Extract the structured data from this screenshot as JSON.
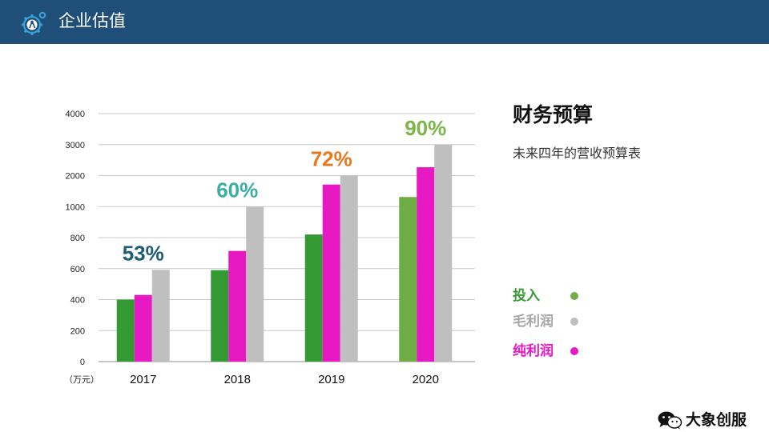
{
  "header": {
    "title": "企业估值",
    "icon": "gear-person-icon",
    "color": "#1f4e79"
  },
  "side": {
    "title": "财务预算",
    "subtitle": "未来四年的营收预算表"
  },
  "legend": [
    {
      "label": "投入",
      "label_color": "#3a9a32",
      "dot_color": "#70ad47"
    },
    {
      "label": "毛利润",
      "label_color": "#a6a6a6",
      "dot_color": "#bfbfbf"
    },
    {
      "label": "纯利润",
      "label_color": "#e619c3",
      "dot_color": "#e619c3"
    }
  ],
  "brand": {
    "text": "大象创服",
    "icon": "wechat-icon"
  },
  "chart_data": {
    "type": "bar",
    "categories": [
      "2017",
      "2018",
      "2019",
      "2020"
    ],
    "y_ticks": [
      "0",
      "200",
      "400",
      "600",
      "800",
      "1000",
      "2000",
      "3000",
      "4000"
    ],
    "y_unit_label": "（万元）",
    "grid": true,
    "series": [
      {
        "name": "投入",
        "tick_positions": [
          2.0,
          2.95,
          4.1,
          5.31
        ],
        "colors": [
          "#339933",
          "#339933",
          "#339933",
          "#70ad47"
        ]
      },
      {
        "name": "纯利润",
        "tick_positions": [
          2.15,
          3.57,
          5.71,
          6.27
        ],
        "colors": [
          "#e619c3",
          "#e619c3",
          "#e619c3",
          "#e619c3"
        ]
      },
      {
        "name": "毛利润",
        "tick_positions": [
          2.96,
          5.0,
          6.0,
          7.0
        ],
        "colors": [
          "#bfbfbf",
          "#bfbfbf",
          "#bfbfbf",
          "#bfbfbf"
        ]
      }
    ],
    "annotations": [
      {
        "category": "2017",
        "text": "53%",
        "color": "#1d5c73"
      },
      {
        "category": "2018",
        "text": "60%",
        "color": "#3aada6"
      },
      {
        "category": "2019",
        "text": "72%",
        "color": "#e8791e"
      },
      {
        "category": "2020",
        "text": "90%",
        "color": "#7ab648"
      }
    ]
  }
}
